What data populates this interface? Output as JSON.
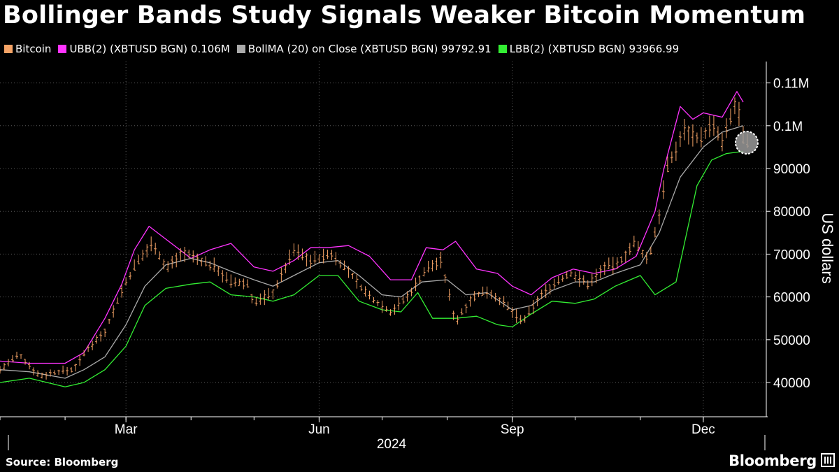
{
  "chart_data": {
    "type": "line",
    "title": "Bollinger Bands Study Signals Weaker Bitcoin Momentum",
    "ylabel": "US dollars",
    "ylim": [
      32000,
      115000
    ],
    "yticks": [
      {
        "value": 110000,
        "label": "0.11M"
      },
      {
        "value": 100000,
        "label": "0.1M"
      },
      {
        "value": 90000,
        "label": "90000"
      },
      {
        "value": 80000,
        "label": "80000"
      },
      {
        "value": 70000,
        "label": "70000"
      },
      {
        "value": 60000,
        "label": "60000"
      },
      {
        "value": 50000,
        "label": "50000"
      },
      {
        "value": 40000,
        "label": "40000"
      }
    ],
    "xlim": [
      "2024-01-01",
      "2024-12-31"
    ],
    "xticks": [
      {
        "value": "2024-03-01",
        "label": "Mar"
      },
      {
        "value": "2024-06-01",
        "label": "Jun"
      },
      {
        "value": "2024-09-01",
        "label": "Sep"
      },
      {
        "value": "2024-12-01",
        "label": "Dec"
      }
    ],
    "year_label": "2024",
    "grid": true,
    "legend_position": "top-left",
    "legend": [
      {
        "label": "Bitcoin",
        "color": "#f5a366"
      },
      {
        "label": "UBB(2) (XBTUSD BGN) 0.106M",
        "color": "#ff33ff"
      },
      {
        "label": "BollMA (20)  on Close (XBTUSD BGN) 99792.91",
        "color": "#aaaaaa"
      },
      {
        "label": "LBB(2) (XBTUSD BGN) 93966.99",
        "color": "#33ee33"
      }
    ],
    "series": [
      {
        "name": "Bitcoin",
        "color": "#f5a366",
        "x": [
          "2024-01-01",
          "2024-01-10",
          "2024-01-20",
          "2024-01-28",
          "2024-02-05",
          "2024-02-12",
          "2024-02-20",
          "2024-02-28",
          "2024-03-05",
          "2024-03-14",
          "2024-03-20",
          "2024-03-28",
          "2024-04-05",
          "2024-04-13",
          "2024-04-19",
          "2024-04-28",
          "2024-05-01",
          "2024-05-10",
          "2024-05-20",
          "2024-05-28",
          "2024-06-07",
          "2024-06-15",
          "2024-06-24",
          "2024-07-05",
          "2024-07-13",
          "2024-07-22",
          "2024-07-29",
          "2024-08-05",
          "2024-08-12",
          "2024-08-20",
          "2024-08-27",
          "2024-09-06",
          "2024-09-14",
          "2024-09-22",
          "2024-09-29",
          "2024-10-07",
          "2024-10-15",
          "2024-10-21",
          "2024-10-29",
          "2024-11-05",
          "2024-11-11",
          "2024-11-13",
          "2024-11-22",
          "2024-11-30",
          "2024-12-05",
          "2024-12-10",
          "2024-12-17",
          "2024-12-20",
          "2024-12-23"
        ],
        "values": [
          43000,
          46500,
          41500,
          42500,
          43000,
          48000,
          52000,
          61500,
          67000,
          73000,
          66500,
          70500,
          68500,
          67000,
          63500,
          63000,
          58500,
          61000,
          71000,
          68500,
          70000,
          66000,
          60500,
          56500,
          60000,
          66500,
          68500,
          54000,
          59500,
          61500,
          59000,
          54000,
          60000,
          63500,
          65500,
          63000,
          67000,
          67500,
          72500,
          68500,
          81500,
          89000,
          99000,
          97000,
          100500,
          96000,
          106000,
          97000,
          95000
        ]
      },
      {
        "name": "UBB(2) (XBTUSD BGN) 0.106M",
        "color": "#ff33ff",
        "x": [
          "2024-01-01",
          "2024-01-15",
          "2024-02-01",
          "2024-02-10",
          "2024-02-20",
          "2024-02-28",
          "2024-03-05",
          "2024-03-12",
          "2024-03-20",
          "2024-04-01",
          "2024-04-10",
          "2024-04-20",
          "2024-05-01",
          "2024-05-10",
          "2024-05-20",
          "2024-05-28",
          "2024-06-05",
          "2024-06-15",
          "2024-06-25",
          "2024-07-05",
          "2024-07-15",
          "2024-07-22",
          "2024-07-30",
          "2024-08-05",
          "2024-08-15",
          "2024-08-25",
          "2024-09-01",
          "2024-09-10",
          "2024-09-20",
          "2024-09-30",
          "2024-10-10",
          "2024-10-20",
          "2024-10-30",
          "2024-11-08",
          "2024-11-12",
          "2024-11-20",
          "2024-11-26",
          "2024-12-01",
          "2024-12-10",
          "2024-12-17",
          "2024-12-20"
        ],
        "values": [
          45000,
          44500,
          44500,
          47000,
          55000,
          63000,
          71000,
          76500,
          73500,
          69000,
          71000,
          72500,
          67000,
          66000,
          68500,
          71500,
          71500,
          72000,
          69500,
          64000,
          64000,
          71500,
          71000,
          73000,
          66500,
          65500,
          62500,
          60500,
          64500,
          66500,
          65500,
          66500,
          69500,
          80000,
          89500,
          104500,
          101500,
          103000,
          102000,
          108000,
          105500
        ]
      },
      {
        "name": "BollMA (20)  on Close (XBTUSD BGN) 99792.91",
        "color": "#aaaaaa",
        "x": [
          "2024-01-01",
          "2024-01-15",
          "2024-02-01",
          "2024-02-10",
          "2024-02-20",
          "2024-03-01",
          "2024-03-10",
          "2024-03-20",
          "2024-04-01",
          "2024-04-10",
          "2024-04-20",
          "2024-05-01",
          "2024-05-10",
          "2024-05-20",
          "2024-06-01",
          "2024-06-10",
          "2024-06-20",
          "2024-07-01",
          "2024-07-10",
          "2024-07-20",
          "2024-08-01",
          "2024-08-10",
          "2024-08-20",
          "2024-09-01",
          "2024-09-10",
          "2024-09-20",
          "2024-10-01",
          "2024-10-10",
          "2024-10-20",
          "2024-11-01",
          "2024-11-10",
          "2024-11-20",
          "2024-12-01",
          "2024-12-10",
          "2024-12-20"
        ],
        "values": [
          43000,
          42500,
          41000,
          43000,
          46000,
          53500,
          62500,
          67500,
          69000,
          68000,
          66000,
          64000,
          62500,
          65000,
          68000,
          68500,
          65000,
          60500,
          60000,
          63500,
          64000,
          60500,
          61000,
          57000,
          58000,
          61500,
          63500,
          63500,
          65500,
          67500,
          75000,
          88000,
          95000,
          98500,
          100000
        ]
      },
      {
        "name": "LBB(2) (XBTUSD BGN) 93966.99",
        "color": "#33ee33",
        "x": [
          "2024-01-01",
          "2024-01-15",
          "2024-02-01",
          "2024-02-10",
          "2024-02-20",
          "2024-03-01",
          "2024-03-10",
          "2024-03-20",
          "2024-04-01",
          "2024-04-10",
          "2024-04-20",
          "2024-05-01",
          "2024-05-10",
          "2024-05-20",
          "2024-06-01",
          "2024-06-10",
          "2024-06-20",
          "2024-07-01",
          "2024-07-10",
          "2024-07-18",
          "2024-07-25",
          "2024-08-05",
          "2024-08-15",
          "2024-08-25",
          "2024-09-01",
          "2024-09-10",
          "2024-09-20",
          "2024-10-01",
          "2024-10-10",
          "2024-10-20",
          "2024-11-01",
          "2024-11-08",
          "2024-11-18",
          "2024-11-28",
          "2024-12-05",
          "2024-12-12",
          "2024-12-20"
        ],
        "values": [
          40000,
          41000,
          39000,
          40000,
          43000,
          48500,
          58000,
          62000,
          63000,
          63500,
          60500,
          60000,
          59000,
          60500,
          65000,
          65000,
          59000,
          57000,
          56500,
          61000,
          55000,
          55000,
          55500,
          53500,
          53000,
          56000,
          59000,
          58500,
          59500,
          62500,
          65000,
          60500,
          63500,
          86000,
          92000,
          93500,
          94000
        ]
      }
    ]
  },
  "footer": {
    "source": "Source: Bloomberg",
    "brand": "Bloomberg"
  }
}
